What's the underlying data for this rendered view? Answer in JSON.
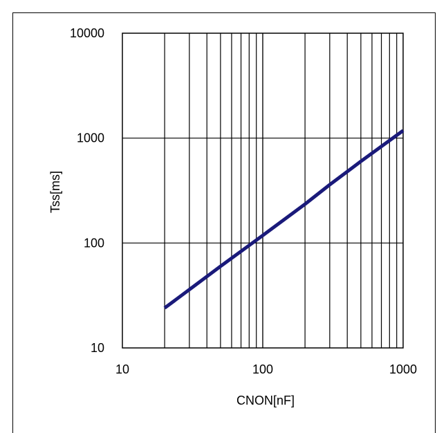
{
  "chart_data": {
    "type": "line",
    "title": "",
    "xlabel": "CNON[nF]",
    "ylabel": "Tss[ms]",
    "x_scale": "log",
    "y_scale": "log",
    "xlim": [
      10,
      1000
    ],
    "ylim": [
      10,
      10000
    ],
    "x_ticks": [
      "10",
      "100",
      "1000"
    ],
    "y_ticks": [
      "10",
      "100",
      "1000",
      "10000"
    ],
    "grid": true,
    "line_color": "#1a1a7a",
    "series": [
      {
        "x": [
          20,
          30,
          50,
          100,
          200,
          300,
          500,
          1000
        ],
        "y": [
          24,
          36,
          60,
          118,
          235,
          360,
          600,
          1180
        ]
      }
    ]
  }
}
